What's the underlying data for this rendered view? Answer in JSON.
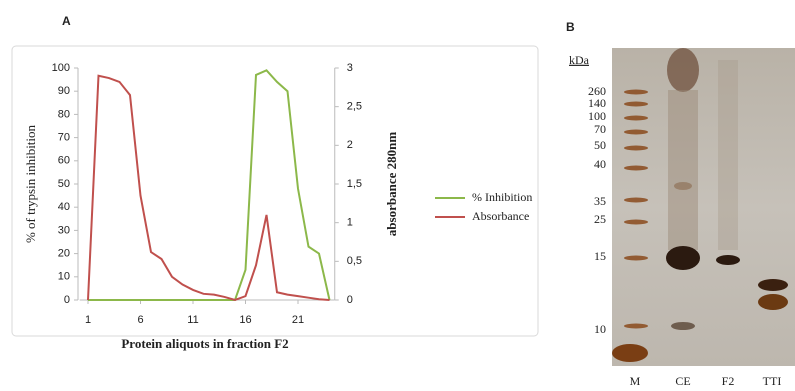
{
  "chart_data": {
    "type": "line",
    "panel": "A",
    "x_label": "Protein aliquots in fraction F2",
    "y_label": "% of trypsin inhibition",
    "y2_label": "absorbance  280nm",
    "x": [
      1,
      2,
      3,
      4,
      5,
      6,
      7,
      8,
      9,
      10,
      11,
      12,
      13,
      14,
      15,
      16,
      17,
      18,
      19,
      20,
      21,
      22,
      23,
      24
    ],
    "series": [
      {
        "name": "% Inhibition",
        "color": "#8cb84a",
        "values": [
          0,
          0,
          0,
          0,
          0,
          0,
          0,
          0,
          0,
          0,
          0,
          0,
          0,
          0,
          0,
          13,
          97,
          99,
          94,
          90,
          48,
          23,
          20,
          0
        ]
      },
      {
        "name": "Absorbance",
        "color": "#c0504d",
        "axis": "y2",
        "values": [
          0,
          2.9,
          2.87,
          2.82,
          2.65,
          1.35,
          0.62,
          0.53,
          0.3,
          0.2,
          0.13,
          0.08,
          0.07,
          0.04,
          0,
          0.05,
          0.45,
          1.1,
          0.1,
          0.07,
          0.05,
          0.03,
          0.01,
          0
        ]
      }
    ],
    "xlim": [
      0.5,
      24.5
    ],
    "xticks": [
      1,
      6,
      11,
      16,
      21
    ],
    "ylim": [
      0,
      100
    ],
    "yticks": [
      0,
      10,
      20,
      30,
      40,
      50,
      60,
      70,
      80,
      90,
      100
    ],
    "y2lim": [
      0,
      3
    ],
    "y2ticks": [
      0,
      {
        "value": 0.5,
        "label": "0,5"
      },
      1,
      {
        "value": 1.5,
        "label": "1,5"
      },
      2,
      {
        "value": 2.5,
        "label": "2,5"
      },
      3
    ],
    "legend": "right"
  },
  "gel": {
    "panel": "B",
    "unit": "kDa",
    "markers": [
      "260",
      "140",
      "100",
      "70",
      "50",
      "40",
      "35",
      "25",
      "15",
      "10"
    ],
    "lanes": [
      "M",
      "CE",
      "F2",
      "TTI"
    ]
  }
}
